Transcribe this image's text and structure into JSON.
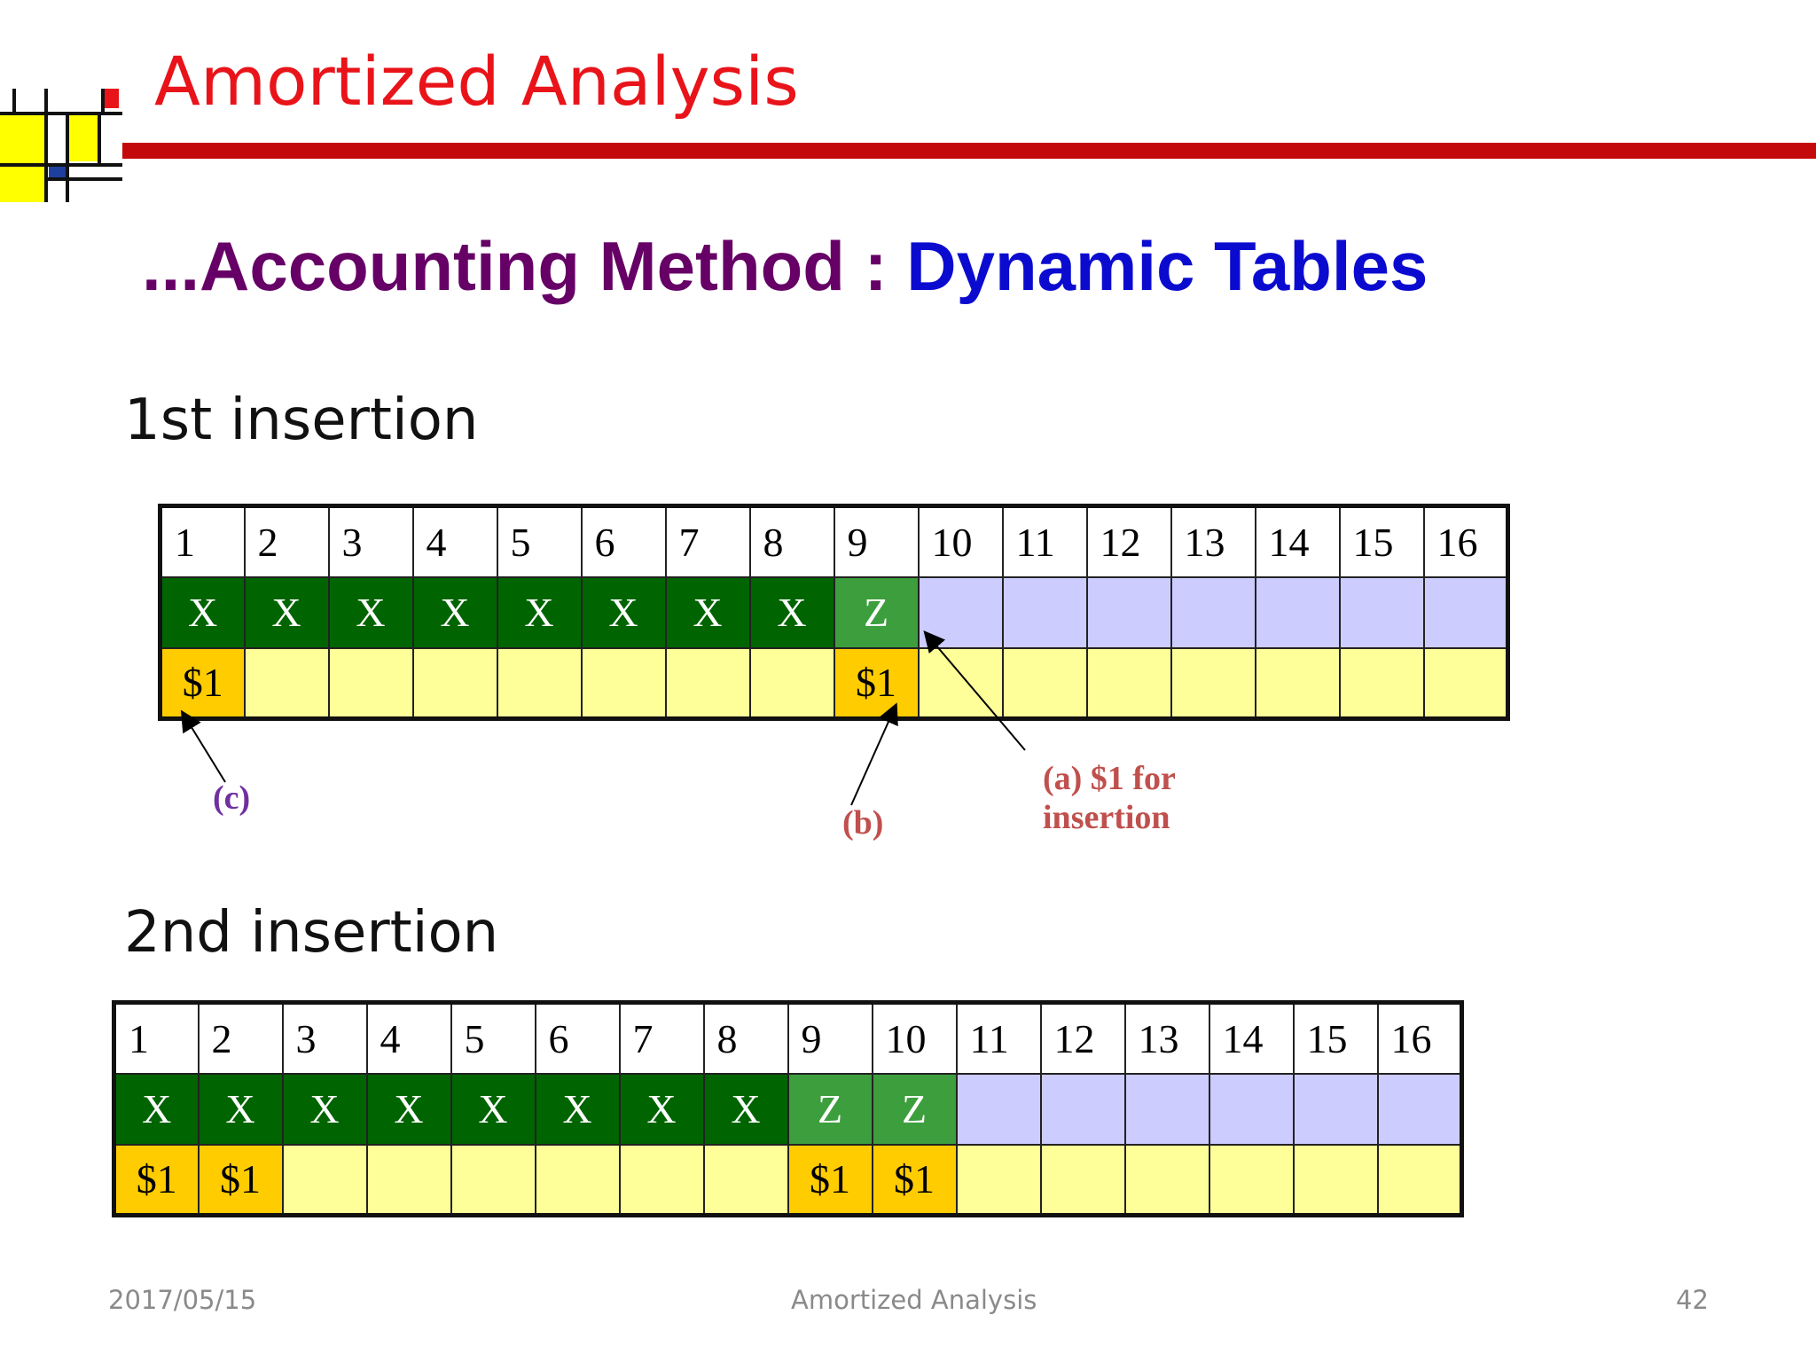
{
  "title": "Amortized Analysis",
  "subtitle": {
    "prefix": "...Accounting Method : ",
    "topic": "Dynamic Tables"
  },
  "colors": {
    "title": "#e8141a",
    "rule": "#c4090d",
    "prefix": "#660066",
    "topic": "#0b0bd0",
    "old_item": "#006400",
    "new_item": "#3d9e3d",
    "empty_slot": "#ccccff",
    "credit_paid": "#ffcc00",
    "credit_empty": "#ffff99",
    "label_a": "#c0504d",
    "label_b": "#c0504d",
    "label_c": "#7030a0"
  },
  "sections": [
    {
      "label": "1st insertion",
      "indices": [
        "1",
        "2",
        "3",
        "4",
        "5",
        "6",
        "7",
        "8",
        "9",
        "10",
        "11",
        "12",
        "13",
        "14",
        "15",
        "16"
      ],
      "values": [
        "X",
        "X",
        "X",
        "X",
        "X",
        "X",
        "X",
        "X",
        "Z",
        "",
        "",
        "",
        "",
        "",
        "",
        ""
      ],
      "credits": [
        "$1",
        "",
        "",
        "",
        "",
        "",
        "",
        "",
        "$1",
        "",
        "",
        "",
        "",
        "",
        "",
        ""
      ]
    },
    {
      "label": "2nd insertion",
      "indices": [
        "1",
        "2",
        "3",
        "4",
        "5",
        "6",
        "7",
        "8",
        "9",
        "10",
        "11",
        "12",
        "13",
        "14",
        "15",
        "16"
      ],
      "values": [
        "X",
        "X",
        "X",
        "X",
        "X",
        "X",
        "X",
        "X",
        "Z",
        "Z",
        "",
        "",
        "",
        "",
        "",
        ""
      ],
      "credits": [
        "$1",
        "$1",
        "",
        "",
        "",
        "",
        "",
        "",
        "$1",
        "$1",
        "",
        "",
        "",
        "",
        "",
        ""
      ]
    }
  ],
  "annotations": {
    "a_line1": "(a) $1 for",
    "a_line2": "insertion",
    "b": "(b)",
    "c": "(c)"
  },
  "footer": {
    "date": "2017/05/15",
    "center": "Amortized Analysis",
    "page": "42"
  }
}
